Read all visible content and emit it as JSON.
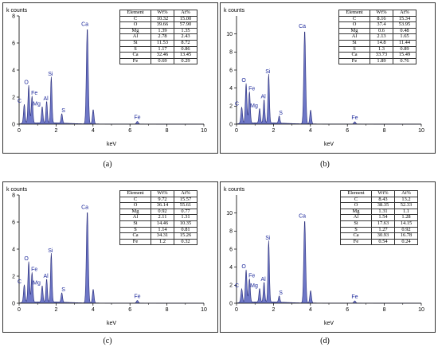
{
  "colors": {
    "fill": "#6670C4",
    "stroke": "#2A2E7A",
    "frame": "#333333",
    "axis": "#000000"
  },
  "chart_data": [
    {
      "type": "area",
      "panel_label": "(a)",
      "ylabel": "k counts",
      "xlabel": "keV",
      "xlim": [
        0,
        10
      ],
      "ylim": [
        0,
        8
      ],
      "x_ticks": [
        0,
        2,
        4,
        6,
        8,
        10
      ],
      "y_ticks": [
        0,
        2,
        4,
        6,
        8
      ],
      "peaks": [
        {
          "label": "C",
          "x": 0.28,
          "y": 1.4
        },
        {
          "label": "O",
          "x": 0.52,
          "y": 2.8
        },
        {
          "label": "Fe",
          "x": 0.7,
          "y": 2.0
        },
        {
          "label": "Mg",
          "x": 1.25,
          "y": 1.2
        },
        {
          "label": "Al",
          "x": 1.49,
          "y": 1.6
        },
        {
          "label": "Si",
          "x": 1.74,
          "y": 3.4
        },
        {
          "label": "S",
          "x": 2.31,
          "y": 0.7
        },
        {
          "label": "Ca",
          "x": 3.69,
          "y": 7.1
        },
        {
          "label": "Fe",
          "x": 6.4,
          "y": 0.2
        }
      ],
      "table": {
        "headers": [
          "Element",
          "Wt%",
          "At%"
        ],
        "rows": [
          [
            "C",
            "10.32",
            "15.00"
          ],
          [
            "O",
            "39.66",
            "57.90"
          ],
          [
            "Mg",
            "1.39",
            "1.35"
          ],
          [
            "Al",
            "2.78",
            "2.43"
          ],
          [
            "Si",
            "11.53",
            "8.72"
          ],
          [
            "S",
            "1.17",
            "0.86"
          ],
          [
            "Ca",
            "32.46",
            "13.45"
          ],
          [
            "Fe",
            "0.69",
            "0.29"
          ]
        ]
      }
    },
    {
      "type": "area",
      "panel_label": "(b)",
      "ylabel": "k counts",
      "xlabel": "keV",
      "xlim": [
        0,
        10
      ],
      "ylim": [
        0,
        12
      ],
      "x_ticks": [
        0,
        2,
        4,
        6,
        8,
        10
      ],
      "y_ticks": [
        0,
        2,
        4,
        6,
        8,
        10
      ],
      "peaks": [
        {
          "label": "C",
          "x": 0.28,
          "y": 1.8
        },
        {
          "label": "O",
          "x": 0.52,
          "y": 4.4
        },
        {
          "label": "Fe",
          "x": 0.7,
          "y": 3.5
        },
        {
          "label": "Mg",
          "x": 1.25,
          "y": 1.6
        },
        {
          "label": "Al",
          "x": 1.49,
          "y": 2.6
        },
        {
          "label": "Si",
          "x": 1.74,
          "y": 5.4
        },
        {
          "label": "S",
          "x": 2.31,
          "y": 0.8
        },
        {
          "label": "Ca",
          "x": 3.69,
          "y": 10.4
        },
        {
          "label": "Fe",
          "x": 6.4,
          "y": 0.25
        }
      ],
      "table": {
        "headers": [
          "Element",
          "Wt%",
          "At%"
        ],
        "rows": [
          [
            "C",
            "8.16",
            "15.34"
          ],
          [
            "O",
            "37.4",
            "53.95"
          ],
          [
            "Mg",
            "0.6",
            "0.48"
          ],
          [
            "Al",
            "2.13",
            "1.65"
          ],
          [
            "Si",
            "14.8",
            "11.44"
          ],
          [
            "S",
            "1.3",
            "0.89"
          ],
          [
            "Ca",
            "33.73",
            "15.49"
          ],
          [
            "Fe",
            "1.89",
            "0.76"
          ]
        ]
      }
    },
    {
      "type": "area",
      "panel_label": "(c)",
      "ylabel": "k counts",
      "xlabel": "keV",
      "xlim": [
        0,
        10
      ],
      "ylim": [
        0,
        8
      ],
      "x_ticks": [
        0,
        2,
        4,
        6,
        8,
        10
      ],
      "y_ticks": [
        0,
        2,
        4,
        6,
        8
      ],
      "peaks": [
        {
          "label": "C",
          "x": 0.28,
          "y": 1.3
        },
        {
          "label": "O",
          "x": 0.52,
          "y": 3.0
        },
        {
          "label": "Fe",
          "x": 0.7,
          "y": 2.2
        },
        {
          "label": "Mg",
          "x": 1.25,
          "y": 1.2
        },
        {
          "label": "Al",
          "x": 1.49,
          "y": 1.7
        },
        {
          "label": "Si",
          "x": 1.74,
          "y": 3.6
        },
        {
          "label": "S",
          "x": 2.31,
          "y": 0.7
        },
        {
          "label": "Ca",
          "x": 3.69,
          "y": 6.8
        },
        {
          "label": "Fe",
          "x": 6.4,
          "y": 0.2
        }
      ],
      "table": {
        "headers": [
          "Element",
          "Wt%",
          "At%"
        ],
        "rows": [
          [
            "C",
            "9.72",
            "15.57"
          ],
          [
            "O",
            "36.14",
            "55.61"
          ],
          [
            "Mg",
            "0.92",
            "0.77"
          ],
          [
            "Al",
            "2.11",
            "1.31"
          ],
          [
            "Si",
            "14.46",
            "10.35"
          ],
          [
            "S",
            "1.14",
            "0.81"
          ],
          [
            "Ca",
            "34.31",
            "15.26"
          ],
          [
            "Fe",
            "1.2",
            "0.32"
          ]
        ]
      }
    },
    {
      "type": "area",
      "panel_label": "(d)",
      "ylabel": "k counts",
      "xlabel": "keV",
      "xlim": [
        0,
        10
      ],
      "ylim": [
        0,
        12
      ],
      "x_ticks": [
        0,
        2,
        4,
        6,
        8,
        10
      ],
      "y_ticks": [
        0,
        2,
        4,
        6,
        8,
        10
      ],
      "peaks": [
        {
          "label": "C",
          "x": 0.28,
          "y": 1.5
        },
        {
          "label": "O",
          "x": 0.52,
          "y": 3.6
        },
        {
          "label": "Fe",
          "x": 0.7,
          "y": 2.6
        },
        {
          "label": "Mg",
          "x": 1.25,
          "y": 1.5
        },
        {
          "label": "Al",
          "x": 1.49,
          "y": 2.2
        },
        {
          "label": "Si",
          "x": 1.74,
          "y": 6.8
        },
        {
          "label": "S",
          "x": 2.31,
          "y": 0.7
        },
        {
          "label": "Ca",
          "x": 3.69,
          "y": 9.2
        },
        {
          "label": "Fe",
          "x": 6.4,
          "y": 0.25
        }
      ],
      "table": {
        "headers": [
          "Element",
          "Wt%",
          "At%"
        ],
        "rows": [
          [
            "C",
            "8.43",
            "13.2"
          ],
          [
            "O",
            "38.35",
            "52.33"
          ],
          [
            "Mg",
            "1.31",
            "1.1"
          ],
          [
            "Al",
            "1.54",
            "1.28"
          ],
          [
            "Si",
            "17.63",
            "14.15"
          ],
          [
            "S",
            "1.27",
            "0.92"
          ],
          [
            "Ca",
            "30.93",
            "16.78"
          ],
          [
            "Fe",
            "0.54",
            "0.24"
          ]
        ]
      }
    }
  ]
}
